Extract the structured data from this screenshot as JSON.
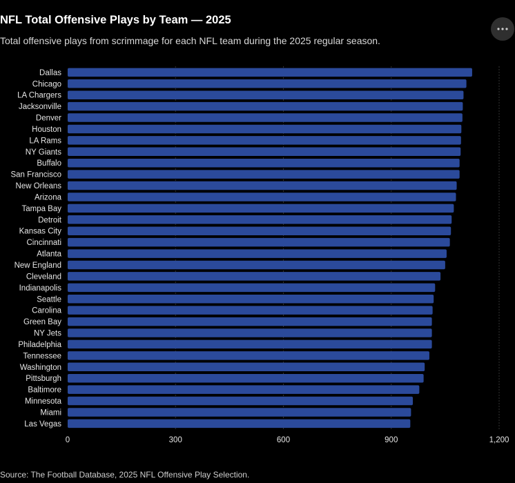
{
  "header": {
    "title": "NFL Total Offensive Plays by Team — 2025",
    "subtitle": "Total offensive plays from scrimmage for each NFL team during the 2025 regular season."
  },
  "toolbar": {
    "more_icon": "ellipsis-icon"
  },
  "footer": {
    "source": "Source: The Football Database, 2025 NFL Offensive Play Selection."
  },
  "colors": {
    "bar": "#2b4a9b",
    "background": "#000000",
    "gridline": "#333333",
    "text": "#e6e6e6"
  },
  "chart_data": {
    "type": "bar",
    "orientation": "horizontal",
    "title": "NFL Total Offensive Plays by Team — 2025",
    "subtitle": "Total offensive plays from scrimmage for each NFL team during the 2025 regular season.",
    "xlabel": "",
    "ylabel": "",
    "xlim": [
      0,
      1200
    ],
    "xticks": [
      0,
      300,
      600,
      900,
      1200
    ],
    "xtick_labels": [
      "0",
      "300",
      "600",
      "900",
      "1,200"
    ],
    "grid": "vertical gridlines",
    "legend": "none",
    "categories": [
      "Dallas",
      "Chicago",
      "LA Chargers",
      "Jacksonville",
      "Denver",
      "Houston",
      "LA Rams",
      "NY Giants",
      "Buffalo",
      "San Francisco",
      "New Orleans",
      "Arizona",
      "Tampa Bay",
      "Detroit",
      "Kansas City",
      "Cincinnati",
      "Atlanta",
      "New England",
      "Cleveland",
      "Indianapolis",
      "Seattle",
      "Carolina",
      "Green Bay",
      "NY Jets",
      "Philadelphia",
      "Tennessee",
      "Washington",
      "Pittsburgh",
      "Baltimore",
      "Minnesota",
      "Miami",
      "Las Vegas"
    ],
    "values": [
      1125,
      1109,
      1101,
      1099,
      1098,
      1095,
      1094,
      1093,
      1090,
      1090,
      1082,
      1080,
      1074,
      1068,
      1066,
      1063,
      1054,
      1050,
      1037,
      1022,
      1018,
      1015,
      1013,
      1013,
      1013,
      1006,
      993,
      990,
      978,
      960,
      955,
      953
    ]
  }
}
